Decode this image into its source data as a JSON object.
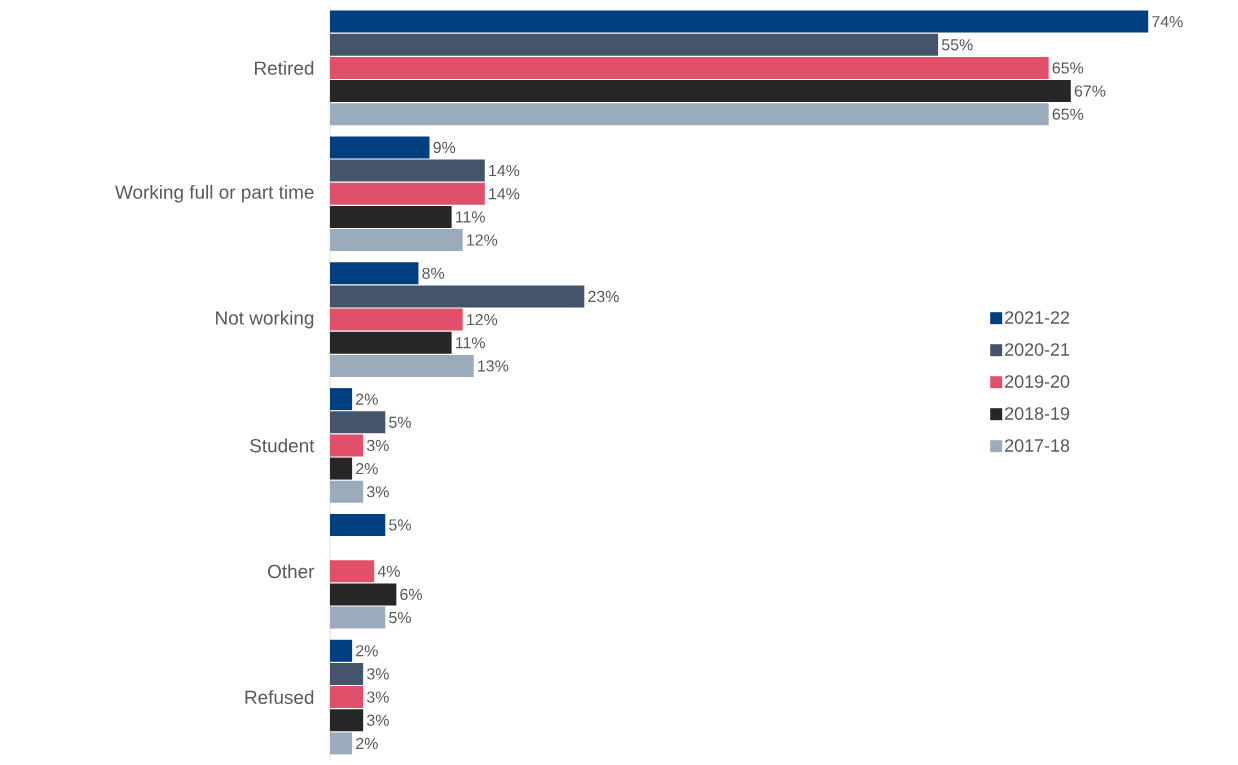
{
  "chart_data": {
    "type": "bar",
    "orientation": "horizontal",
    "categories": [
      "Retired",
      "Working full or part time",
      "Not working",
      "Student",
      "Other",
      "Refused"
    ],
    "series": [
      {
        "name": "2021-22",
        "color": "#003f7f",
        "values": [
          74,
          9,
          8,
          2,
          5,
          2
        ],
        "value_labels": [
          "74%",
          "9%",
          "8%",
          "2%",
          "5%",
          "2%"
        ]
      },
      {
        "name": "2020-21",
        "color": "#44546a",
        "values": [
          55,
          14,
          23,
          5,
          null,
          3
        ],
        "value_labels": [
          "55%",
          "14%",
          "23%",
          "5%",
          null,
          "3%"
        ]
      },
      {
        "name": "2019-20",
        "color": "#e0506a",
        "values": [
          65,
          14,
          12,
          3,
          4,
          3
        ],
        "value_labels": [
          "65%",
          "14%",
          "12%",
          "3%",
          "4%",
          "3%"
        ]
      },
      {
        "name": "2018-19",
        "color": "#262626",
        "values": [
          67,
          11,
          11,
          2,
          6,
          3
        ],
        "value_labels": [
          "67%",
          "11%",
          "11%",
          "2%",
          "6%",
          "3%"
        ]
      },
      {
        "name": "2017-18",
        "color": "#9aabbc",
        "values": [
          65,
          12,
          13,
          3,
          5,
          2
        ],
        "value_labels": [
          "65%",
          "12%",
          "13%",
          "3%",
          "5%",
          "2%"
        ]
      }
    ],
    "legend": "right"
  }
}
